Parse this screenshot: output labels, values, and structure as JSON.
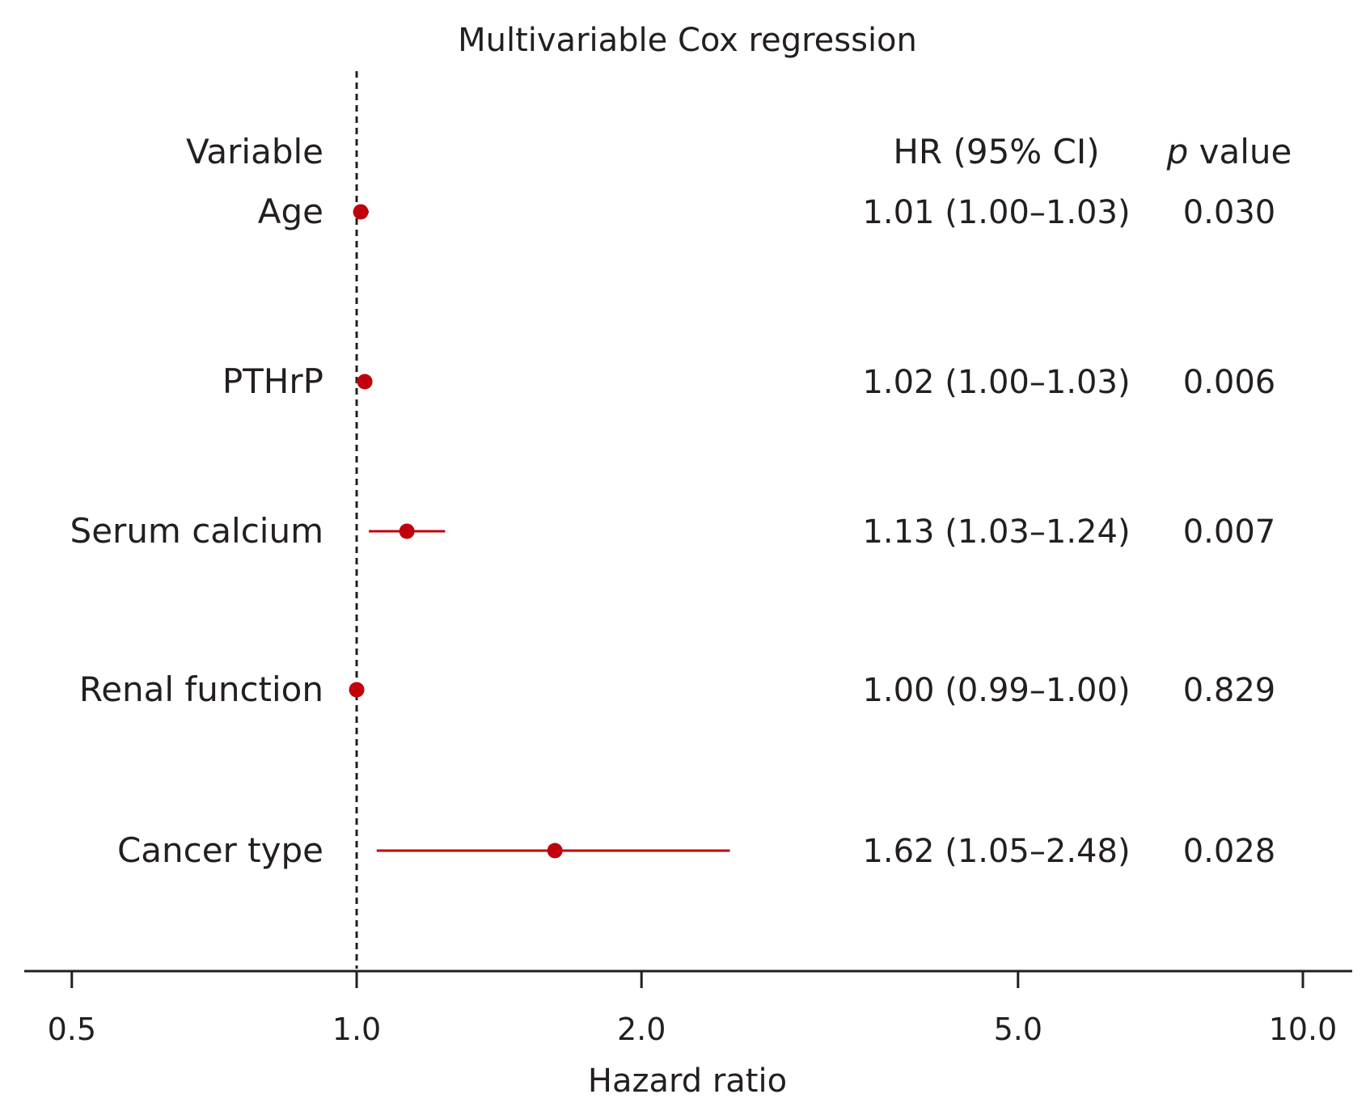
{
  "chart_data": {
    "type": "forest",
    "title": "Multivariable Cox regression",
    "xlabel": "Hazard ratio",
    "xscale": "log",
    "xlim": [
      0.5,
      11
    ],
    "xticks": [
      0.5,
      1.0,
      2.0,
      5.0,
      10.0
    ],
    "xtick_labels": [
      "0.5",
      "1.0",
      "2.0",
      "5.0",
      "10.0"
    ],
    "reference_line": 1.0,
    "color": "#c0000b",
    "columns": {
      "variable": "Variable",
      "hr": "HR (95% CI)",
      "p_italic": "p",
      "p_rest": " value"
    },
    "rows": [
      {
        "variable": "Age",
        "hr": 1.01,
        "lo": 1.0,
        "hi": 1.03,
        "hr_text": "1.01 (1.00–1.03)",
        "p": "0.030"
      },
      {
        "variable": "PTHrP",
        "hr": 1.02,
        "lo": 1.0,
        "hi": 1.03,
        "hr_text": "1.02 (1.00–1.03)",
        "p": "0.006"
      },
      {
        "variable": "Serum calcium",
        "hr": 1.13,
        "lo": 1.03,
        "hi": 1.24,
        "hr_text": "1.13 (1.03–1.24)",
        "p": "0.007"
      },
      {
        "variable": "Renal function",
        "hr": 1.0,
        "lo": 0.99,
        "hi": 1.0,
        "hr_text": "1.00 (0.99–1.00)",
        "p": "0.829"
      },
      {
        "variable": "Cancer type",
        "hr": 1.62,
        "lo": 1.05,
        "hi": 2.48,
        "hr_text": "1.62 (1.05–2.48)",
        "p": "0.028"
      }
    ]
  }
}
